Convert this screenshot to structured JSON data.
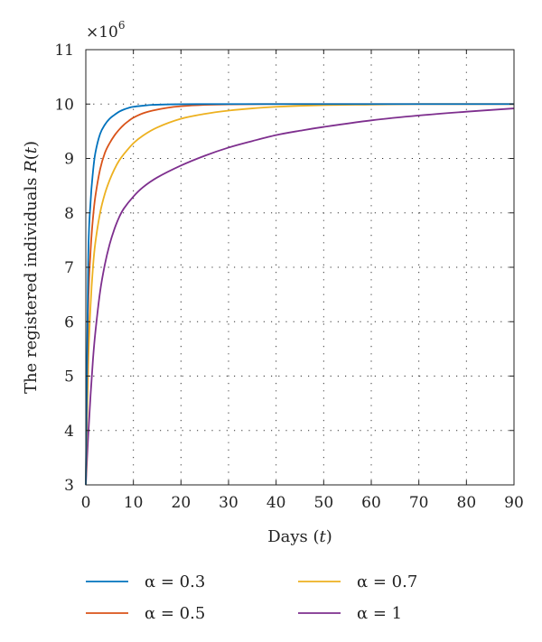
{
  "chart_data": {
    "type": "line",
    "title": "",
    "xlabel": "Days (t)",
    "xlabel_parts": {
      "text": "Days ",
      "var": "t"
    },
    "ylabel": "The registered individuals R(t)",
    "ylabel_parts": {
      "text": "The registered individuals ",
      "var": "R"
    },
    "y_multiplier": "×10^6",
    "y_multiplier_parts": {
      "base": "×10",
      "exp": "6"
    },
    "xlim": [
      0,
      90
    ],
    "ylim": [
      3,
      11
    ],
    "xticks": [
      0,
      10,
      20,
      30,
      40,
      50,
      60,
      70,
      80,
      90
    ],
    "yticks": [
      3,
      4,
      5,
      6,
      7,
      8,
      9,
      10,
      11
    ],
    "grid": true,
    "legend_position": "bottom",
    "series": [
      {
        "name": "α = 0.3",
        "color": "#0072BD",
        "x": [
          0,
          0.5,
          1,
          1.5,
          2,
          3,
          4,
          5,
          6,
          7,
          8,
          9,
          10,
          12,
          14,
          17,
          20,
          25,
          30,
          40,
          50,
          60,
          70,
          80,
          90
        ],
        "y": [
          3,
          7.1,
          8.2,
          8.75,
          9.1,
          9.45,
          9.62,
          9.73,
          9.8,
          9.86,
          9.9,
          9.93,
          9.95,
          9.97,
          9.985,
          9.993,
          9.997,
          10,
          10,
          10,
          10,
          10,
          10,
          10,
          10
        ]
      },
      {
        "name": "α = 0.5",
        "color": "#D95319",
        "x": [
          0,
          0.5,
          1,
          1.5,
          2,
          3,
          4,
          5,
          6,
          7,
          8,
          9,
          10,
          12,
          14,
          17,
          20,
          25,
          30,
          40,
          50,
          60,
          70,
          80,
          90
        ],
        "y": [
          3,
          6.2,
          7.3,
          7.9,
          8.3,
          8.8,
          9.1,
          9.28,
          9.42,
          9.53,
          9.62,
          9.69,
          9.75,
          9.83,
          9.88,
          9.93,
          9.96,
          9.985,
          9.995,
          10,
          10,
          10,
          10,
          10,
          10
        ]
      },
      {
        "name": "α = 0.7",
        "color": "#EDB120",
        "x": [
          0,
          0.5,
          1,
          1.5,
          2,
          3,
          4,
          5,
          6,
          7,
          8,
          10,
          12,
          15,
          20,
          25,
          30,
          35,
          40,
          50,
          60,
          70,
          80,
          90
        ],
        "y": [
          3,
          5.2,
          6.3,
          7.0,
          7.45,
          8.0,
          8.35,
          8.6,
          8.8,
          8.96,
          9.08,
          9.28,
          9.42,
          9.57,
          9.73,
          9.82,
          9.88,
          9.92,
          9.95,
          9.98,
          9.99,
          10,
          10,
          10
        ]
      },
      {
        "name": "α = 1",
        "color": "#7E2F8E",
        "x": [
          0,
          0.5,
          1,
          1.5,
          2,
          3,
          4,
          5,
          6,
          7,
          8,
          10,
          12,
          15,
          20,
          25,
          30,
          35,
          40,
          45,
          50,
          60,
          70,
          80,
          90
        ],
        "y": [
          3,
          3.9,
          4.65,
          5.3,
          5.8,
          6.55,
          7.05,
          7.42,
          7.7,
          7.92,
          8.08,
          8.3,
          8.47,
          8.65,
          8.87,
          9.05,
          9.2,
          9.32,
          9.43,
          9.51,
          9.58,
          9.7,
          9.79,
          9.86,
          9.92
        ]
      }
    ]
  }
}
